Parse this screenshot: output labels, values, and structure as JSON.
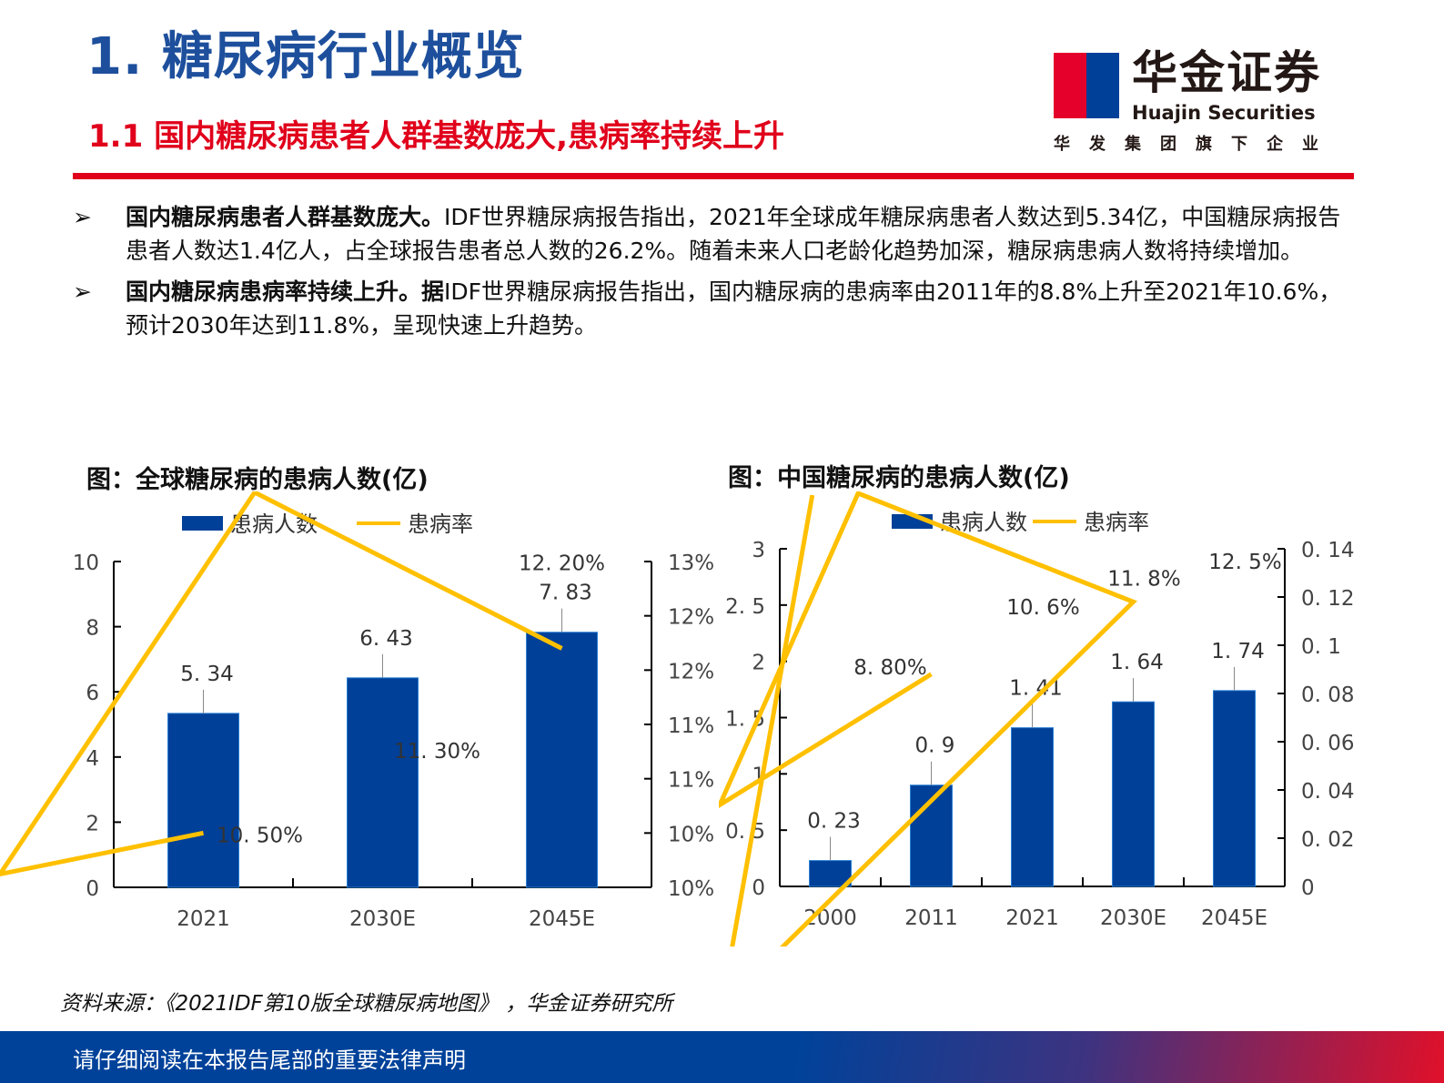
{
  "header": {
    "title": "1. 糖尿病行业概览",
    "subtitle": "1.1 国内糖尿病患者人群基数庞大,患病率持续上升"
  },
  "logo": {
    "cn": "华金证券",
    "en": "Huajin Securities",
    "tagline": "华发集团旗下企业",
    "colors": {
      "red": "#e4002b",
      "blue": "#004098"
    }
  },
  "bullets": [
    {
      "marker": "➢",
      "bold": "国内糖尿病患者人群基数庞大。",
      "text": "IDF世界糖尿病报告指出，2021年全球成年糖尿病患者人数达到5.34亿，中国糖尿病报告患者人数达1.4亿人，占全球报告患者总人数的26.2%。随着未来人口老龄化趋势加深，糖尿病患病人数将持续增加。"
    },
    {
      "marker": "➢",
      "bold": "国内糖尿病患病率持续上升。据",
      "text": "IDF世界糖尿病报告指出，国内糖尿病的患病率由2011年的8.8%上升至2021年10.6%，预计2030年达到11.8%，呈现快速上升趋势。"
    }
  ],
  "chart_data": [
    {
      "type": "bar+line",
      "title": "图：全球糖尿病的患病人数(亿)",
      "categories": [
        "2021",
        "2030E",
        "2045E"
      ],
      "series": [
        {
          "name": "患病人数",
          "type": "bar",
          "axis": "left",
          "values": [
            5.34,
            6.43,
            7.83
          ],
          "labels": [
            "5. 34",
            "6. 43",
            "7. 83"
          ],
          "color": "#004098"
        },
        {
          "name": "患病率",
          "type": "line",
          "axis": "right",
          "values": [
            10.5,
            11.3,
            12.2
          ],
          "labels": [
            "10. 50%",
            "11. 30%",
            "12. 20%"
          ],
          "color": "#ffc000"
        }
      ],
      "ylim": [
        0,
        10
      ],
      "yticks": [
        "0",
        "2",
        "4",
        "6",
        "8",
        "10"
      ],
      "y2lim": [
        10,
        13
      ],
      "y2ticks": [
        "10%",
        "10%",
        "11%",
        "11%",
        "12%",
        "12%",
        "13%"
      ],
      "legend": "top"
    },
    {
      "type": "bar+line",
      "title": "图：中国糖尿病的患病人数(亿)",
      "categories": [
        "2000",
        "2011",
        "2021",
        "2030E",
        "2045E"
      ],
      "series": [
        {
          "name": "患病人数",
          "type": "bar",
          "axis": "left",
          "values": [
            0.23,
            0.9,
            1.41,
            1.64,
            1.74
          ],
          "labels": [
            "0. 23",
            "0. 9",
            "1. 41",
            "1. 64",
            "1. 74"
          ],
          "color": "#004098"
        },
        {
          "name": "患病率",
          "type": "line",
          "axis": "right",
          "values": [
            null,
            0.088,
            0.106,
            0.118,
            0.125
          ],
          "labels": [
            "",
            "8. 80%",
            "10. 6%",
            "11. 8%",
            "12. 5%"
          ],
          "color": "#ffc000"
        }
      ],
      "ylim": [
        0,
        3
      ],
      "yticks": [
        "0",
        "0. 5",
        "1",
        "1. 5",
        "2",
        "2. 5",
        "3"
      ],
      "y2lim": [
        0,
        0.14
      ],
      "y2ticks": [
        "0",
        "0. 02",
        "0. 04",
        "0. 06",
        "0. 08",
        "0. 1",
        "0. 12",
        "0. 14"
      ],
      "legend": "top"
    }
  ],
  "source": "资料来源：《2021IDF第10版全球糖尿病地图》 ，华金证券研究所",
  "footer": "请仔细阅读在本报告尾部的重要法律声明"
}
